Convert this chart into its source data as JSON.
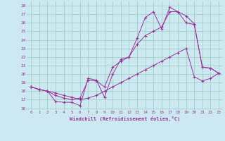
{
  "xlabel": "Windchill (Refroidissement éolien,°C)",
  "bg_color": "#cce8f0",
  "line_color": "#993399",
  "grid_color": "#99ccbb",
  "xlim": [
    -0.5,
    23.5
  ],
  "ylim": [
    15.8,
    28.5
  ],
  "xticks": [
    0,
    1,
    2,
    3,
    4,
    5,
    6,
    7,
    8,
    9,
    10,
    11,
    12,
    13,
    14,
    15,
    16,
    17,
    18,
    19,
    20,
    21,
    22,
    23
  ],
  "yticks": [
    16,
    17,
    18,
    19,
    20,
    21,
    22,
    23,
    24,
    25,
    26,
    27,
    28
  ],
  "line1_x": [
    0,
    1,
    2,
    3,
    4,
    5,
    6,
    7,
    8,
    9,
    10,
    11,
    12,
    13,
    14,
    15,
    16,
    17,
    18,
    19,
    20,
    21,
    22,
    23
  ],
  "line1_y": [
    18.5,
    18.2,
    18.0,
    16.8,
    16.7,
    16.7,
    16.3,
    19.5,
    19.3,
    17.3,
    20.0,
    21.7,
    22.0,
    24.2,
    26.6,
    27.3,
    25.3,
    27.8,
    27.3,
    26.8,
    25.9,
    20.8,
    20.7,
    20.1
  ],
  "line2_x": [
    0,
    1,
    2,
    3,
    4,
    5,
    6,
    7,
    8,
    9,
    10,
    11,
    12,
    13,
    14,
    15,
    16,
    17,
    18,
    19,
    20,
    21,
    22,
    23
  ],
  "line2_y": [
    18.5,
    18.2,
    18.0,
    17.5,
    17.2,
    17.0,
    17.2,
    19.3,
    19.2,
    18.5,
    20.8,
    21.5,
    22.0,
    23.5,
    24.5,
    25.0,
    25.5,
    27.3,
    27.3,
    26.0,
    25.8,
    20.8,
    20.7,
    20.1
  ],
  "line3_x": [
    0,
    1,
    2,
    3,
    4,
    5,
    6,
    7,
    8,
    9,
    10,
    11,
    12,
    13,
    14,
    15,
    16,
    17,
    18,
    19,
    20,
    21,
    22,
    23
  ],
  "line3_y": [
    18.5,
    18.2,
    18.0,
    17.8,
    17.5,
    17.3,
    17.0,
    17.2,
    17.5,
    18.0,
    18.5,
    19.0,
    19.5,
    20.0,
    20.5,
    21.0,
    21.5,
    22.0,
    22.5,
    23.0,
    19.7,
    19.2,
    19.5,
    20.1
  ]
}
